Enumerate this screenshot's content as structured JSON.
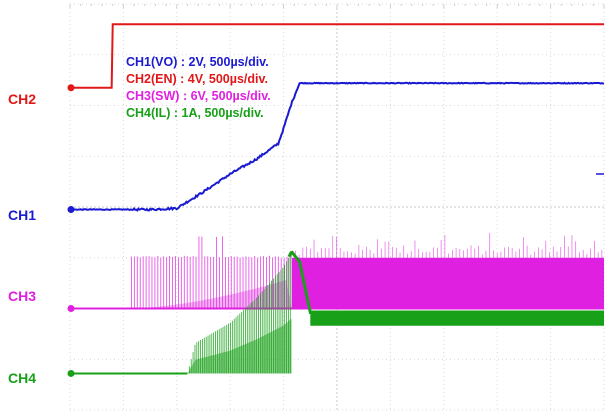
{
  "chart_data": {
    "type": "line",
    "title": "",
    "xlabel": "",
    "ylabel": "",
    "grid": true,
    "x_divisions": 10,
    "y_divisions": 8,
    "time_per_div": "500µs",
    "legend_position": "top-left",
    "legend": [
      {
        "text": "CH1(VO) : 2V, 500µs/div.",
        "color": "#1a1ad2"
      },
      {
        "text": "CH2(EN) : 4V, 500µs/div.",
        "color": "#e01818"
      },
      {
        "text": "CH3(SW) : 6V, 500µs/div.",
        "color": "#e020e0"
      },
      {
        "text": "CH4(IL) : 1A, 500µs/div.",
        "color": "#18a018"
      }
    ],
    "series": [
      {
        "name": "CH2",
        "color": "#e01818",
        "unit": "V",
        "volts_per_div": 4,
        "zero_level_div": 6.35,
        "x": [
          0,
          0.78,
          0.8,
          10
        ],
        "y": [
          0,
          0,
          5.0,
          5.0
        ]
      },
      {
        "name": "CH1",
        "color": "#1a1ad2",
        "unit": "V",
        "volts_per_div": 2,
        "zero_level_div": 3.95,
        "x": [
          0,
          1.5,
          2.0,
          2.5,
          3.0,
          3.5,
          3.9,
          4.0,
          4.15,
          4.3,
          10
        ],
        "y": [
          0,
          0,
          0.05,
          0.7,
          1.4,
          2.0,
          2.6,
          3.2,
          4.2,
          4.98,
          4.98
        ]
      },
      {
        "name": "CH3",
        "color": "#e020e0",
        "unit": "V",
        "volts_per_div": 6,
        "zero_level_div": 2.0,
        "switching_start_div": 1.15,
        "switching_full_div": 4.15,
        "x": [
          0,
          1.15,
          4.15,
          10
        ],
        "y": [
          0,
          0,
          0,
          0
        ]
      },
      {
        "name": "CH4",
        "color": "#18a018",
        "unit": "A",
        "amps_per_div": 1,
        "zero_level_div": 0.72,
        "x": [
          0,
          2.2,
          2.35,
          3.0,
          3.5,
          4.0,
          4.15,
          4.3,
          4.5,
          10
        ],
        "y": [
          0,
          0,
          0.6,
          1.0,
          1.5,
          2.1,
          2.4,
          2.2,
          1.2,
          1.2
        ]
      }
    ]
  },
  "channel_labels": [
    {
      "name": "ch2",
      "text": "CH2",
      "color": "#e01818"
    },
    {
      "name": "ch1",
      "text": "CH1",
      "color": "#1a1ad2"
    },
    {
      "name": "ch3",
      "text": "CH3",
      "color": "#e020e0"
    },
    {
      "name": "ch4",
      "text": "CH4",
      "color": "#18a018"
    }
  ]
}
